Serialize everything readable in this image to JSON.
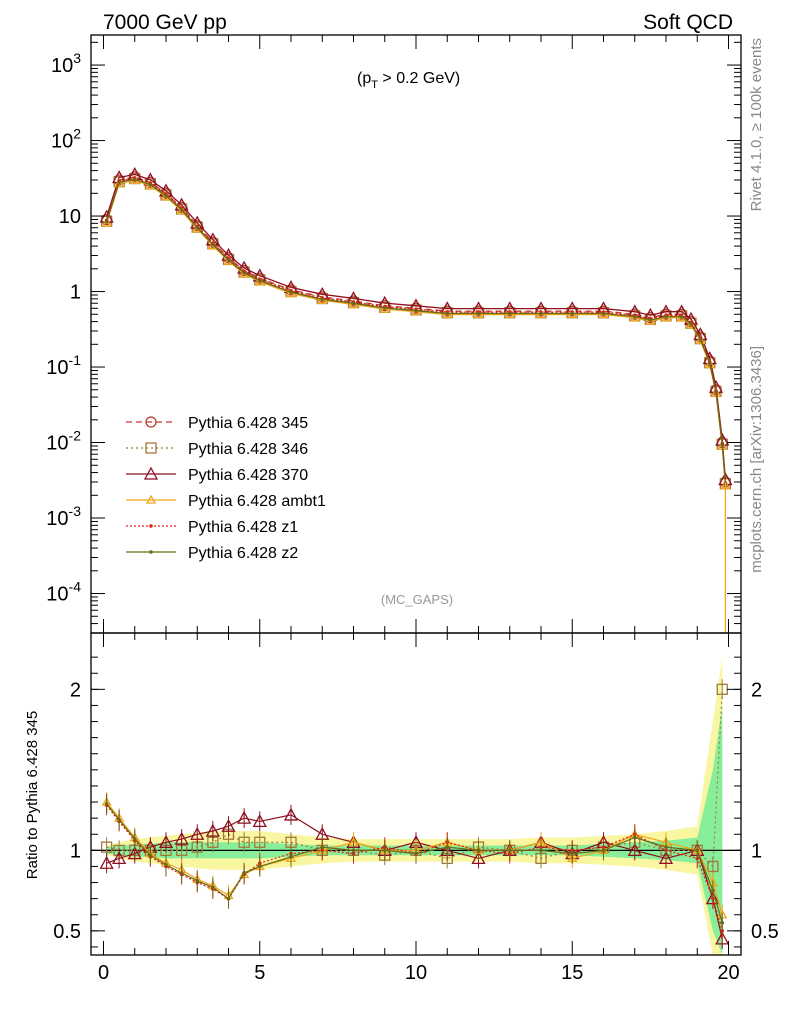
{
  "header": {
    "left_title": "7000 GeV pp",
    "right_title": "Soft QCD",
    "cut_label_main": "(p",
    "cut_label_sub": "T",
    "cut_label_rest": " > 0.2 GeV)",
    "analysis_tag": "(MC_GAPS)",
    "side_text_top": "Rivet 4.1.0, ≥ 100k events",
    "side_text_bottom": "mcplots.cern.ch [arXiv:1306.3436]",
    "ratio_ylabel": "Ratio to Pythia 6.428 345"
  },
  "colors": {
    "p345": "#c0392b",
    "p346": "#a07a3a",
    "p370": "#8e1020",
    "ambt1": "#f0a818",
    "z1": "#e02010",
    "z2": "#6a6a18",
    "band_green": "#88ee99",
    "band_yellow": "#f8f6a0"
  },
  "chart_data": [
    {
      "type": "line",
      "name": "main",
      "yscale": "log",
      "xlim": [
        -0.4,
        20.4
      ],
      "ylim": [
        3e-05,
        2500
      ],
      "y_tick_labels": [
        "10^-4",
        "10^-3",
        "10^-2",
        "10^-1",
        "1",
        "10",
        "10^2",
        "10^3"
      ],
      "legend_position": "lower-left",
      "series": [
        {
          "name": "Pythia 6.428 345",
          "key": "p345",
          "marker": "circle",
          "dash": "6,4"
        },
        {
          "name": "Pythia 6.428 346",
          "key": "p346",
          "marker": "square",
          "dash": "2,3"
        },
        {
          "name": "Pythia 6.428 370",
          "key": "p370",
          "marker": "triangle",
          "dash": ""
        },
        {
          "name": "Pythia 6.428 ambt1",
          "key": "ambt1",
          "marker": "triangle-small",
          "dash": ""
        },
        {
          "name": "Pythia 6.428 z1",
          "key": "z1",
          "marker": "dot",
          "dash": "2,2"
        },
        {
          "name": "Pythia 6.428 z2",
          "key": "z2",
          "marker": "dot",
          "dash": ""
        }
      ],
      "x": [
        0.1,
        0.5,
        1.0,
        1.5,
        2.0,
        2.5,
        3.0,
        3.5,
        4.0,
        4.5,
        5.0,
        6.0,
        7.0,
        8.0,
        9.0,
        10.0,
        11.0,
        12.0,
        13.0,
        14.0,
        15.0,
        16.0,
        17.0,
        17.5,
        18.0,
        18.5,
        18.8,
        19.1,
        19.4,
        19.6,
        19.8,
        19.9
      ],
      "values": [
        9,
        30,
        33,
        28,
        20,
        13,
        7.5,
        4.5,
        2.8,
        1.9,
        1.5,
        1.05,
        0.85,
        0.75,
        0.65,
        0.6,
        0.55,
        0.55,
        0.55,
        0.55,
        0.55,
        0.55,
        0.5,
        0.45,
        0.5,
        0.5,
        0.4,
        0.25,
        0.12,
        0.05,
        0.01,
        0.003
      ]
    },
    {
      "type": "line",
      "name": "ratio",
      "xlim": [
        -0.4,
        20.4
      ],
      "ylim": [
        0.35,
        2.35
      ],
      "x_tick_labels": [
        "0",
        "5",
        "10",
        "15",
        "20"
      ],
      "y_tick_labels": [
        "0.5",
        "1",
        "2"
      ],
      "reference": 1.0,
      "x": [
        0.1,
        0.5,
        1.0,
        1.5,
        2.0,
        2.5,
        3.0,
        3.5,
        4.0,
        4.5,
        5.0,
        6.0,
        7.0,
        8.0,
        9.0,
        10.0,
        11.0,
        12.0,
        13.0,
        14.0,
        15.0,
        16.0,
        17.0,
        18.0,
        19.0,
        19.5,
        19.8
      ],
      "series": [
        {
          "key": "p346",
          "values": [
            1.02,
            1.0,
            1.0,
            1.0,
            1.0,
            1.0,
            1.02,
            1.05,
            1.1,
            1.05,
            1.05,
            1.05,
            1.0,
            1.0,
            0.97,
            1.0,
            0.95,
            1.02,
            1.0,
            0.95,
            1.0,
            1.02,
            1.05,
            1.0,
            1.0,
            0.9,
            2.0
          ]
        },
        {
          "key": "p370",
          "values": [
            0.92,
            0.95,
            0.98,
            1.02,
            1.05,
            1.07,
            1.1,
            1.12,
            1.15,
            1.2,
            1.18,
            1.22,
            1.1,
            1.05,
            1.0,
            1.05,
            1.0,
            0.95,
            1.0,
            1.05,
            0.98,
            1.05,
            1.0,
            0.95,
            1.0,
            0.7,
            0.45
          ]
        },
        {
          "key": "ambt1",
          "values": [
            1.3,
            1.2,
            1.08,
            0.98,
            0.92,
            0.88,
            0.82,
            0.78,
            0.72,
            0.85,
            0.9,
            0.95,
            1.0,
            1.05,
            1.0,
            1.0,
            1.05,
            1.0,
            1.0,
            1.05,
            0.95,
            1.0,
            1.1,
            1.05,
            1.0,
            0.8,
            0.6
          ]
        },
        {
          "key": "z1",
          "values": [
            1.28,
            1.18,
            1.06,
            0.96,
            0.9,
            0.85,
            0.8,
            0.76,
            0.7,
            0.85,
            0.92,
            0.98,
            1.0,
            0.98,
            1.02,
            0.98,
            1.05,
            1.0,
            0.98,
            1.02,
            1.0,
            1.02,
            1.1,
            1.0,
            0.95,
            0.7,
            0.5
          ]
        },
        {
          "key": "z2",
          "values": [
            1.29,
            1.19,
            1.07,
            0.97,
            0.91,
            0.86,
            0.81,
            0.77,
            0.7,
            0.86,
            0.9,
            0.96,
            1.02,
            1.0,
            1.0,
            0.98,
            1.02,
            1.0,
            1.0,
            1.0,
            0.98,
            1.0,
            1.08,
            1.02,
            1.0,
            0.75,
            0.55
          ]
        }
      ],
      "band_green_halfwidth": [
        0.02,
        0.03,
        0.04,
        0.04,
        0.05,
        0.05,
        0.05,
        0.05,
        0.05,
        0.05,
        0.05,
        0.04,
        0.03,
        0.03,
        0.03,
        0.03,
        0.03,
        0.03,
        0.03,
        0.03,
        0.03,
        0.04,
        0.05,
        0.06,
        0.08,
        0.5,
        0.9
      ],
      "band_yellow_halfwidth": [
        0.03,
        0.05,
        0.07,
        0.08,
        0.09,
        0.1,
        0.11,
        0.12,
        0.12,
        0.12,
        0.12,
        0.1,
        0.08,
        0.07,
        0.07,
        0.07,
        0.07,
        0.07,
        0.07,
        0.08,
        0.08,
        0.09,
        0.1,
        0.12,
        0.15,
        0.8,
        1.2
      ]
    }
  ]
}
